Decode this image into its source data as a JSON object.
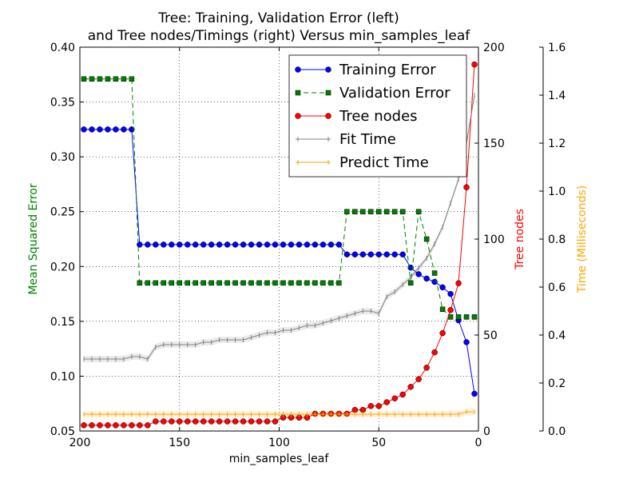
{
  "chart_data": {
    "type": "line",
    "title_line1": "Tree: Training, Validation Error (left)",
    "title_line2": "and Tree nodes/Timings (right) Versus min_samples_leaf",
    "xlabel": "min_samples_leaf",
    "ylabel_left": "Mean Squared Error",
    "ylabel_right1": "Tree nodes",
    "ylabel_right2": "Time (Milliseconds)",
    "xlim": [
      200,
      0
    ],
    "x_inverted": true,
    "ylim_left": [
      0.05,
      0.4
    ],
    "ylim_right1": [
      0,
      200
    ],
    "ylim_right2": [
      0.0,
      1.6
    ],
    "grid": true,
    "legend_position": "upper-right",
    "xticks": [
      "200",
      "150",
      "100",
      "50",
      "0"
    ],
    "yticks_left": [
      "0.05",
      "0.10",
      "0.15",
      "0.20",
      "0.25",
      "0.30",
      "0.35",
      "0.40"
    ],
    "yticks_right1": [
      "0",
      "50",
      "100",
      "150",
      "200"
    ],
    "yticks_right2": [
      "0.0",
      "0.2",
      "0.4",
      "0.6",
      "0.8",
      "1.0",
      "1.2",
      "1.4",
      "1.6"
    ],
    "x": [
      198,
      194,
      190,
      186,
      182,
      178,
      174,
      170,
      166,
      162,
      158,
      154,
      150,
      146,
      142,
      138,
      134,
      130,
      126,
      122,
      118,
      114,
      110,
      106,
      102,
      98,
      94,
      90,
      86,
      82,
      78,
      74,
      70,
      66,
      62,
      58,
      54,
      50,
      46,
      42,
      38,
      34,
      30,
      26,
      22,
      18,
      14,
      10,
      6,
      2
    ],
    "series": [
      {
        "name": "Training Error",
        "axis": "left",
        "color": "#0000ff",
        "marker": "circle",
        "linestyle": "solid",
        "values": [
          0.325,
          0.325,
          0.325,
          0.325,
          0.325,
          0.325,
          0.325,
          0.22,
          0.22,
          0.22,
          0.22,
          0.22,
          0.22,
          0.22,
          0.22,
          0.22,
          0.22,
          0.22,
          0.22,
          0.22,
          0.22,
          0.22,
          0.22,
          0.22,
          0.22,
          0.22,
          0.22,
          0.22,
          0.22,
          0.22,
          0.22,
          0.22,
          0.22,
          0.211,
          0.211,
          0.211,
          0.211,
          0.211,
          0.211,
          0.211,
          0.211,
          0.199,
          0.193,
          0.189,
          0.186,
          0.181,
          0.175,
          0.151,
          0.131,
          0.084
        ]
      },
      {
        "name": "Validation Error",
        "axis": "left",
        "color": "#007f00",
        "marker": "square",
        "linestyle": "dashed",
        "values": [
          0.371,
          0.371,
          0.371,
          0.371,
          0.371,
          0.371,
          0.371,
          0.185,
          0.185,
          0.185,
          0.185,
          0.185,
          0.185,
          0.185,
          0.185,
          0.185,
          0.185,
          0.185,
          0.185,
          0.185,
          0.185,
          0.185,
          0.185,
          0.185,
          0.185,
          0.185,
          0.185,
          0.185,
          0.185,
          0.185,
          0.185,
          0.185,
          0.185,
          0.25,
          0.25,
          0.25,
          0.25,
          0.25,
          0.25,
          0.25,
          0.25,
          0.185,
          0.25,
          0.225,
          0.194,
          0.161,
          0.154,
          0.154,
          0.154,
          0.154
        ]
      },
      {
        "name": "Tree nodes",
        "axis": "right1",
        "color": "#ff0000",
        "marker": "circle",
        "linestyle": "solid",
        "values": [
          3,
          3,
          3,
          3,
          3,
          3,
          3,
          3,
          3,
          5,
          5,
          5,
          5,
          5,
          5,
          5,
          5,
          5,
          5,
          5,
          5,
          5,
          5,
          5,
          5,
          7,
          7,
          7,
          7,
          9,
          9,
          9,
          9,
          9,
          11,
          11,
          13,
          13,
          15,
          17,
          19,
          23,
          27,
          33,
          41,
          51,
          63,
          77,
          127,
          191
        ]
      },
      {
        "name": "Fit Time",
        "axis": "right2",
        "color": "#808080",
        "marker": "tick",
        "linestyle": "solid",
        "values": [
          0.3,
          0.3,
          0.3,
          0.3,
          0.3,
          0.3,
          0.31,
          0.31,
          0.3,
          0.35,
          0.36,
          0.36,
          0.36,
          0.36,
          0.36,
          0.37,
          0.37,
          0.38,
          0.38,
          0.38,
          0.38,
          0.39,
          0.4,
          0.41,
          0.41,
          0.42,
          0.42,
          0.43,
          0.44,
          0.44,
          0.45,
          0.46,
          0.47,
          0.48,
          0.49,
          0.5,
          0.5,
          0.49,
          0.56,
          0.58,
          0.61,
          0.64,
          0.68,
          0.72,
          0.78,
          0.85,
          0.95,
          1.05,
          1.2,
          1.4
        ]
      },
      {
        "name": "Predict Time",
        "axis": "right2",
        "color": "#ffa500",
        "marker": "tick",
        "linestyle": "solid",
        "values": [
          0.07,
          0.07,
          0.07,
          0.07,
          0.07,
          0.07,
          0.07,
          0.07,
          0.07,
          0.07,
          0.07,
          0.07,
          0.07,
          0.07,
          0.07,
          0.07,
          0.07,
          0.07,
          0.07,
          0.07,
          0.07,
          0.07,
          0.07,
          0.07,
          0.07,
          0.07,
          0.07,
          0.07,
          0.07,
          0.07,
          0.07,
          0.07,
          0.07,
          0.07,
          0.07,
          0.07,
          0.07,
          0.07,
          0.07,
          0.07,
          0.07,
          0.07,
          0.07,
          0.07,
          0.07,
          0.07,
          0.07,
          0.07,
          0.08,
          0.08
        ]
      }
    ]
  }
}
